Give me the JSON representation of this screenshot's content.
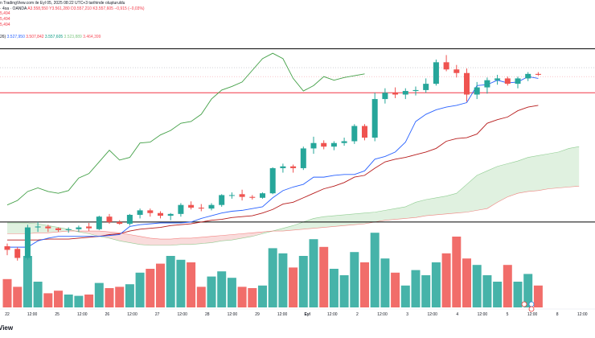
{
  "header": {
    "published": "n TradingView.com ile Eyl 05, 2025 08:22 UTC+3 tarihinde oluşturuldu",
    "symbol": "· 4sa · OANDA",
    "ohlc": [
      "A3.558,550",
      "Y3.561,280",
      "D3.557,210",
      "K3.557,605",
      "−0,915 (−0,03%)"
    ],
    "left_values": [
      "5,494",
      "5,494",
      "5,494"
    ],
    "indicator": {
      "label": "26)",
      "values": [
        "3.527,950",
        "3.507,842",
        "3.557,605",
        "3.523,889",
        "3.464,399"
      ]
    }
  },
  "x_axis_labels": [
    {
      "text": "22",
      "bold": false
    },
    {
      "text": "12:00",
      "bold": false
    },
    {
      "text": "25",
      "bold": false
    },
    {
      "text": "12:00",
      "bold": false
    },
    {
      "text": "26",
      "bold": false
    },
    {
      "text": "12:00",
      "bold": false
    },
    {
      "text": "27",
      "bold": false
    },
    {
      "text": "12:00",
      "bold": false
    },
    {
      "text": "28",
      "bold": false
    },
    {
      "text": "12:00",
      "bold": false
    },
    {
      "text": "29",
      "bold": false
    },
    {
      "text": "12:00",
      "bold": false
    },
    {
      "text": "Eyl",
      "bold": true
    },
    {
      "text": "12:00",
      "bold": false
    },
    {
      "text": "2",
      "bold": false
    },
    {
      "text": "12:00",
      "bold": false
    },
    {
      "text": "3",
      "bold": false
    },
    {
      "text": "12:00",
      "bold": false
    },
    {
      "text": "4",
      "bold": false
    },
    {
      "text": "12:00",
      "bold": false
    },
    {
      "text": "5",
      "bold": false
    },
    {
      "text": "12:00",
      "bold": false
    },
    {
      "text": "8",
      "bold": false
    },
    {
      "text": "12:00",
      "bold": false
    }
  ],
  "logo_text": "View",
  "colors": {
    "up": "#26a69a",
    "down": "#ef5350",
    "vol_up": "#26a69a",
    "vol_down": "#ef5350",
    "tenkan": "#2962ff",
    "kijun": "#b71c1c",
    "chikou": "#43a047",
    "cloud_green": "#a5d6a7",
    "cloud_red": "#ef9a9a",
    "hline_black": "#000000",
    "hline_red": "#f23645"
  },
  "chart_data": {
    "type": "candlestick",
    "title": "",
    "xlabel": "",
    "ylabel": "",
    "candles": [
      {
        "o": 3341,
        "h": 3344,
        "l": 3331,
        "c": 3337
      },
      {
        "o": 3338,
        "h": 3340,
        "l": 3325,
        "c": 3328
      },
      {
        "o": 3328,
        "h": 3365,
        "l": 3326,
        "c": 3362
      },
      {
        "o": 3362,
        "h": 3368,
        "l": 3357,
        "c": 3363
      },
      {
        "o": 3363,
        "h": 3365,
        "l": 3357,
        "c": 3361
      },
      {
        "o": 3361,
        "h": 3362,
        "l": 3357,
        "c": 3359
      },
      {
        "o": 3359,
        "h": 3362,
        "l": 3356,
        "c": 3360
      },
      {
        "o": 3360,
        "h": 3364,
        "l": 3357,
        "c": 3362
      },
      {
        "o": 3363,
        "h": 3367,
        "l": 3358,
        "c": 3361
      },
      {
        "o": 3360,
        "h": 3375,
        "l": 3359,
        "c": 3374
      },
      {
        "o": 3374,
        "h": 3377,
        "l": 3366,
        "c": 3368
      },
      {
        "o": 3368,
        "h": 3370,
        "l": 3365,
        "c": 3366
      },
      {
        "o": 3366,
        "h": 3377,
        "l": 3364,
        "c": 3376
      },
      {
        "o": 3376,
        "h": 3383,
        "l": 3372,
        "c": 3381
      },
      {
        "o": 3381,
        "h": 3383,
        "l": 3374,
        "c": 3378
      },
      {
        "o": 3378,
        "h": 3380,
        "l": 3372,
        "c": 3375
      },
      {
        "o": 3375,
        "h": 3378,
        "l": 3370,
        "c": 3377
      },
      {
        "o": 3377,
        "h": 3389,
        "l": 3374,
        "c": 3387
      },
      {
        "o": 3387,
        "h": 3391,
        "l": 3382,
        "c": 3384
      },
      {
        "o": 3384,
        "h": 3388,
        "l": 3380,
        "c": 3383
      },
      {
        "o": 3383,
        "h": 3389,
        "l": 3381,
        "c": 3387
      },
      {
        "o": 3387,
        "h": 3399,
        "l": 3385,
        "c": 3398
      },
      {
        "o": 3398,
        "h": 3401,
        "l": 3394,
        "c": 3398
      },
      {
        "o": 3399,
        "h": 3404,
        "l": 3392,
        "c": 3396
      },
      {
        "o": 3396,
        "h": 3398,
        "l": 3393,
        "c": 3395
      },
      {
        "o": 3395,
        "h": 3401,
        "l": 3394,
        "c": 3400
      },
      {
        "o": 3400,
        "h": 3429,
        "l": 3399,
        "c": 3428
      },
      {
        "o": 3428,
        "h": 3433,
        "l": 3423,
        "c": 3430
      },
      {
        "o": 3430,
        "h": 3432,
        "l": 3423,
        "c": 3428
      },
      {
        "o": 3428,
        "h": 3452,
        "l": 3426,
        "c": 3450
      },
      {
        "o": 3450,
        "h": 3463,
        "l": 3444,
        "c": 3456
      },
      {
        "o": 3456,
        "h": 3459,
        "l": 3449,
        "c": 3452
      },
      {
        "o": 3452,
        "h": 3458,
        "l": 3448,
        "c": 3456
      },
      {
        "o": 3456,
        "h": 3462,
        "l": 3453,
        "c": 3458
      },
      {
        "o": 3458,
        "h": 3477,
        "l": 3455,
        "c": 3475
      },
      {
        "o": 3475,
        "h": 3477,
        "l": 3459,
        "c": 3462
      },
      {
        "o": 3462,
        "h": 3512,
        "l": 3458,
        "c": 3505
      },
      {
        "o": 3505,
        "h": 3517,
        "l": 3500,
        "c": 3512
      },
      {
        "o": 3512,
        "h": 3518,
        "l": 3506,
        "c": 3510
      },
      {
        "o": 3510,
        "h": 3517,
        "l": 3505,
        "c": 3514
      },
      {
        "o": 3514,
        "h": 3519,
        "l": 3509,
        "c": 3515
      },
      {
        "o": 3515,
        "h": 3528,
        "l": 3512,
        "c": 3522
      },
      {
        "o": 3522,
        "h": 3549,
        "l": 3520,
        "c": 3546
      },
      {
        "o": 3546,
        "h": 3554,
        "l": 3536,
        "c": 3538
      },
      {
        "o": 3538,
        "h": 3543,
        "l": 3529,
        "c": 3534
      },
      {
        "o": 3534,
        "h": 3539,
        "l": 3502,
        "c": 3510
      },
      {
        "o": 3510,
        "h": 3524,
        "l": 3505,
        "c": 3518
      },
      {
        "o": 3518,
        "h": 3529,
        "l": 3511,
        "c": 3526
      },
      {
        "o": 3526,
        "h": 3532,
        "l": 3521,
        "c": 3528
      },
      {
        "o": 3528,
        "h": 3530,
        "l": 3520,
        "c": 3522
      },
      {
        "o": 3522,
        "h": 3530,
        "l": 3517,
        "c": 3528
      },
      {
        "o": 3528,
        "h": 3535,
        "l": 3525,
        "c": 3533
      },
      {
        "o": 3533,
        "h": 3535,
        "l": 3531,
        "c": 3532
      }
    ],
    "volumes": [
      22,
      16,
      40,
      20,
      11,
      13,
      10,
      9,
      10,
      19,
      15,
      16,
      18,
      27,
      30,
      34,
      40,
      37,
      35,
      16,
      24,
      28,
      23,
      16,
      15,
      17,
      46,
      42,
      31,
      40,
      53,
      47,
      30,
      25,
      43,
      35,
      58,
      38,
      27,
      17,
      29,
      25,
      35,
      42,
      55,
      38,
      33,
      25,
      20,
      33,
      20,
      26,
      17
    ],
    "tenkan": [
      3340,
      3340,
      3340,
      3347,
      3350,
      3352,
      3352,
      3352,
      3352,
      3352,
      3353,
      3354,
      3363,
      3365,
      3366,
      3367,
      3367,
      3367,
      3368,
      3372,
      3375,
      3378,
      3380,
      3381,
      3383,
      3385,
      3395,
      3403,
      3407,
      3410,
      3418,
      3418,
      3420,
      3421,
      3421,
      3425,
      3438,
      3441,
      3446,
      3457,
      3480,
      3488,
      3493,
      3496,
      3498,
      3501,
      3520,
      3521,
      3526,
      3523,
      3524,
      3530,
      3528
    ],
    "kijun": [
      3348,
      3348,
      3348,
      3348,
      3349,
      3349,
      3349,
      3350,
      3351,
      3352,
      3354,
      3355,
      3358,
      3360,
      3361,
      3362,
      3364,
      3365,
      3366,
      3368,
      3370,
      3371,
      3373,
      3374,
      3375,
      3378,
      3382,
      3388,
      3390,
      3395,
      3400,
      3405,
      3408,
      3412,
      3418,
      3420,
      3428,
      3435,
      3438,
      3440,
      3443,
      3446,
      3450,
      3458,
      3461,
      3462,
      3466,
      3478,
      3482,
      3485,
      3492,
      3496,
      3498
    ],
    "chikou": [
      3387,
      3392,
      3402,
      3406,
      3402,
      3400,
      3403,
      3417,
      3422,
      3435,
      3448,
      3437,
      3440,
      3456,
      3457,
      3465,
      3470,
      3478,
      3480,
      3488,
      3505,
      3515,
      3519,
      3524,
      3537,
      3550,
      3556,
      3550,
      3528,
      3514,
      3520,
      3530,
      3526,
      3529,
      3531,
      3533
    ],
    "senkou_a": [
      3367,
      3367,
      3367,
      3366,
      3364,
      3362,
      3360,
      3357,
      3355,
      3352,
      3350,
      3347,
      3345,
      3343,
      3342,
      3342,
      3342,
      3343,
      3343,
      3344,
      3345,
      3347,
      3348,
      3350,
      3352,
      3355,
      3358,
      3361,
      3364,
      3368,
      3372,
      3374,
      3375,
      3376,
      3377,
      3378,
      3379,
      3381,
      3383,
      3385,
      3390,
      3393,
      3395,
      3397,
      3400,
      3410,
      3420,
      3425,
      3430,
      3433,
      3436,
      3440,
      3442,
      3444,
      3446,
      3450,
      3452
    ],
    "senkou_b": [
      3355,
      3355,
      3355,
      3356,
      3356,
      3357,
      3358,
      3358,
      3358,
      3358,
      3357,
      3356,
      3354,
      3352,
      3350,
      3349,
      3349,
      3350,
      3350,
      3351,
      3352,
      3353,
      3354,
      3355,
      3356,
      3357,
      3358,
      3358,
      3359,
      3360,
      3361,
      3362,
      3363,
      3364,
      3365,
      3366,
      3368,
      3370,
      3371,
      3372,
      3373,
      3375,
      3376,
      3377,
      3378,
      3379,
      3381,
      3383,
      3390,
      3396,
      3400,
      3402,
      3403,
      3405,
      3406,
      3407,
      3408
    ],
    "hlines": [
      {
        "value": 3561,
        "color": "black"
      },
      {
        "value": 3512,
        "color": "red"
      },
      {
        "value": 3368,
        "color": "black"
      }
    ],
    "dotted_lines": [
      {
        "value": 3540,
        "color": "gray"
      },
      {
        "value": 3530,
        "color": "red"
      }
    ],
    "ylim": [
      3315,
      3575
    ]
  }
}
